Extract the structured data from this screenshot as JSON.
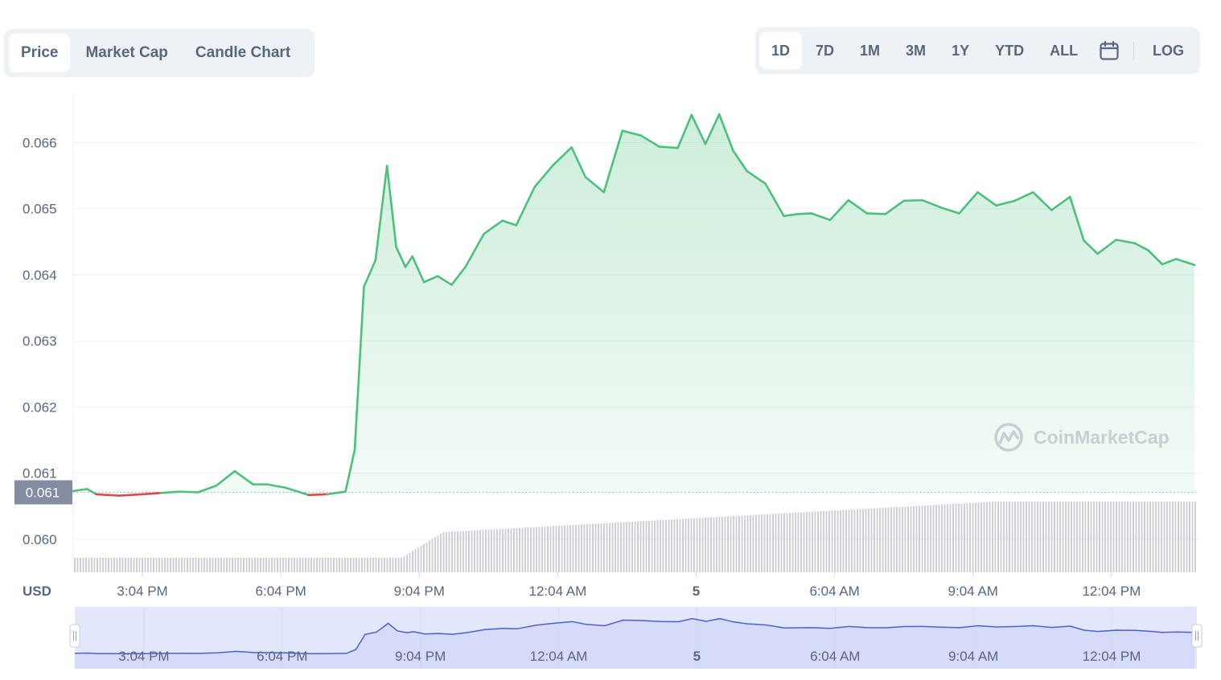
{
  "tabs": [
    {
      "label": "Price",
      "active": true
    },
    {
      "label": "Market Cap",
      "active": false
    },
    {
      "label": "Candle Chart",
      "active": false
    }
  ],
  "ranges": [
    {
      "label": "1D",
      "active": true
    },
    {
      "label": "7D",
      "active": false
    },
    {
      "label": "1M",
      "active": false
    },
    {
      "label": "3M",
      "active": false
    },
    {
      "label": "1Y",
      "active": false
    },
    {
      "label": "YTD",
      "active": false
    },
    {
      "label": "ALL",
      "active": false
    }
  ],
  "icons": {
    "calendar": "calendar-icon",
    "logo": "coinmarketcap-logo-icon"
  },
  "log_label": "LOG",
  "watermark": "CoinMarketCap",
  "colors": {
    "up": "#4cc17c",
    "down": "#d94a4a",
    "volume": "#cdd0d6",
    "navigator": "#e3e7fb",
    "navigator_line": "#4b5fd8"
  },
  "chart_data": {
    "type": "line",
    "ylabel": "USD",
    "y_ticks": [
      "0.060",
      "0.061",
      "0.062",
      "0.063",
      "0.064",
      "0.065",
      "0.066"
    ],
    "ylim": [
      0.0595,
      0.06676
    ],
    "current_price_label": "0.061",
    "reference_price": 0.06071,
    "x_ticks": [
      "3:04 PM",
      "6:04 PM",
      "9:04 PM",
      "12:04 AM",
      "5",
      "6:04 AM",
      "9:04 AM",
      "12:04 PM"
    ],
    "bold_ticks": [
      "5"
    ],
    "x_range_hours": [
      0,
      24.35
    ],
    "tick_hours": [
      1.5,
      4.5,
      7.5,
      10.5,
      13.5,
      16.5,
      19.5,
      22.5
    ],
    "series": [
      {
        "values_hours": [
          0.0,
          0.3,
          0.5,
          1.0,
          1.5,
          1.9,
          2.3,
          2.7,
          3.1,
          3.5,
          3.9,
          4.2,
          4.6,
          5.1,
          5.5,
          5.9,
          6.1,
          6.3,
          6.55,
          6.8,
          7.0,
          7.2,
          7.35,
          7.6,
          7.9,
          8.2,
          8.5,
          8.9,
          9.3,
          9.6,
          10.0,
          10.4,
          10.8,
          11.1,
          11.5,
          11.9,
          12.3,
          12.7,
          13.1,
          13.4,
          13.7,
          14.0,
          14.3,
          14.6,
          15.0,
          15.4,
          15.7,
          16.0,
          16.4,
          16.8,
          17.2,
          17.6,
          18.0,
          18.4,
          18.8,
          19.2,
          19.6,
          20.0,
          20.4,
          20.8,
          21.2,
          21.6,
          21.9,
          22.2,
          22.6,
          23.0,
          23.3,
          23.6,
          23.9,
          24.3
        ],
        "values": [
          0.06073,
          0.06076,
          0.06068,
          0.06066,
          0.06068,
          0.0607,
          0.06072,
          0.06071,
          0.06081,
          0.06103,
          0.06083,
          0.06083,
          0.06078,
          0.06067,
          0.06068,
          0.06072,
          0.06135,
          0.06382,
          0.06422,
          0.06565,
          0.06442,
          0.06412,
          0.06428,
          0.06389,
          0.06398,
          0.06385,
          0.06412,
          0.06462,
          0.06482,
          0.06475,
          0.06533,
          0.06566,
          0.06593,
          0.06548,
          0.06525,
          0.06618,
          0.06611,
          0.06594,
          0.06592,
          0.06642,
          0.06598,
          0.06643,
          0.06588,
          0.06557,
          0.06538,
          0.06489,
          0.06492,
          0.06493,
          0.06483,
          0.06513,
          0.06493,
          0.06492,
          0.06512,
          0.06513,
          0.06502,
          0.06493,
          0.06525,
          0.06505,
          0.06512,
          0.06525,
          0.06498,
          0.06518,
          0.06452,
          0.06432,
          0.06453,
          0.06448,
          0.06437,
          0.06416,
          0.06424,
          0.06415
        ]
      }
    ],
    "volume_trend": "rising from low before 7:04 PM to high near end"
  }
}
